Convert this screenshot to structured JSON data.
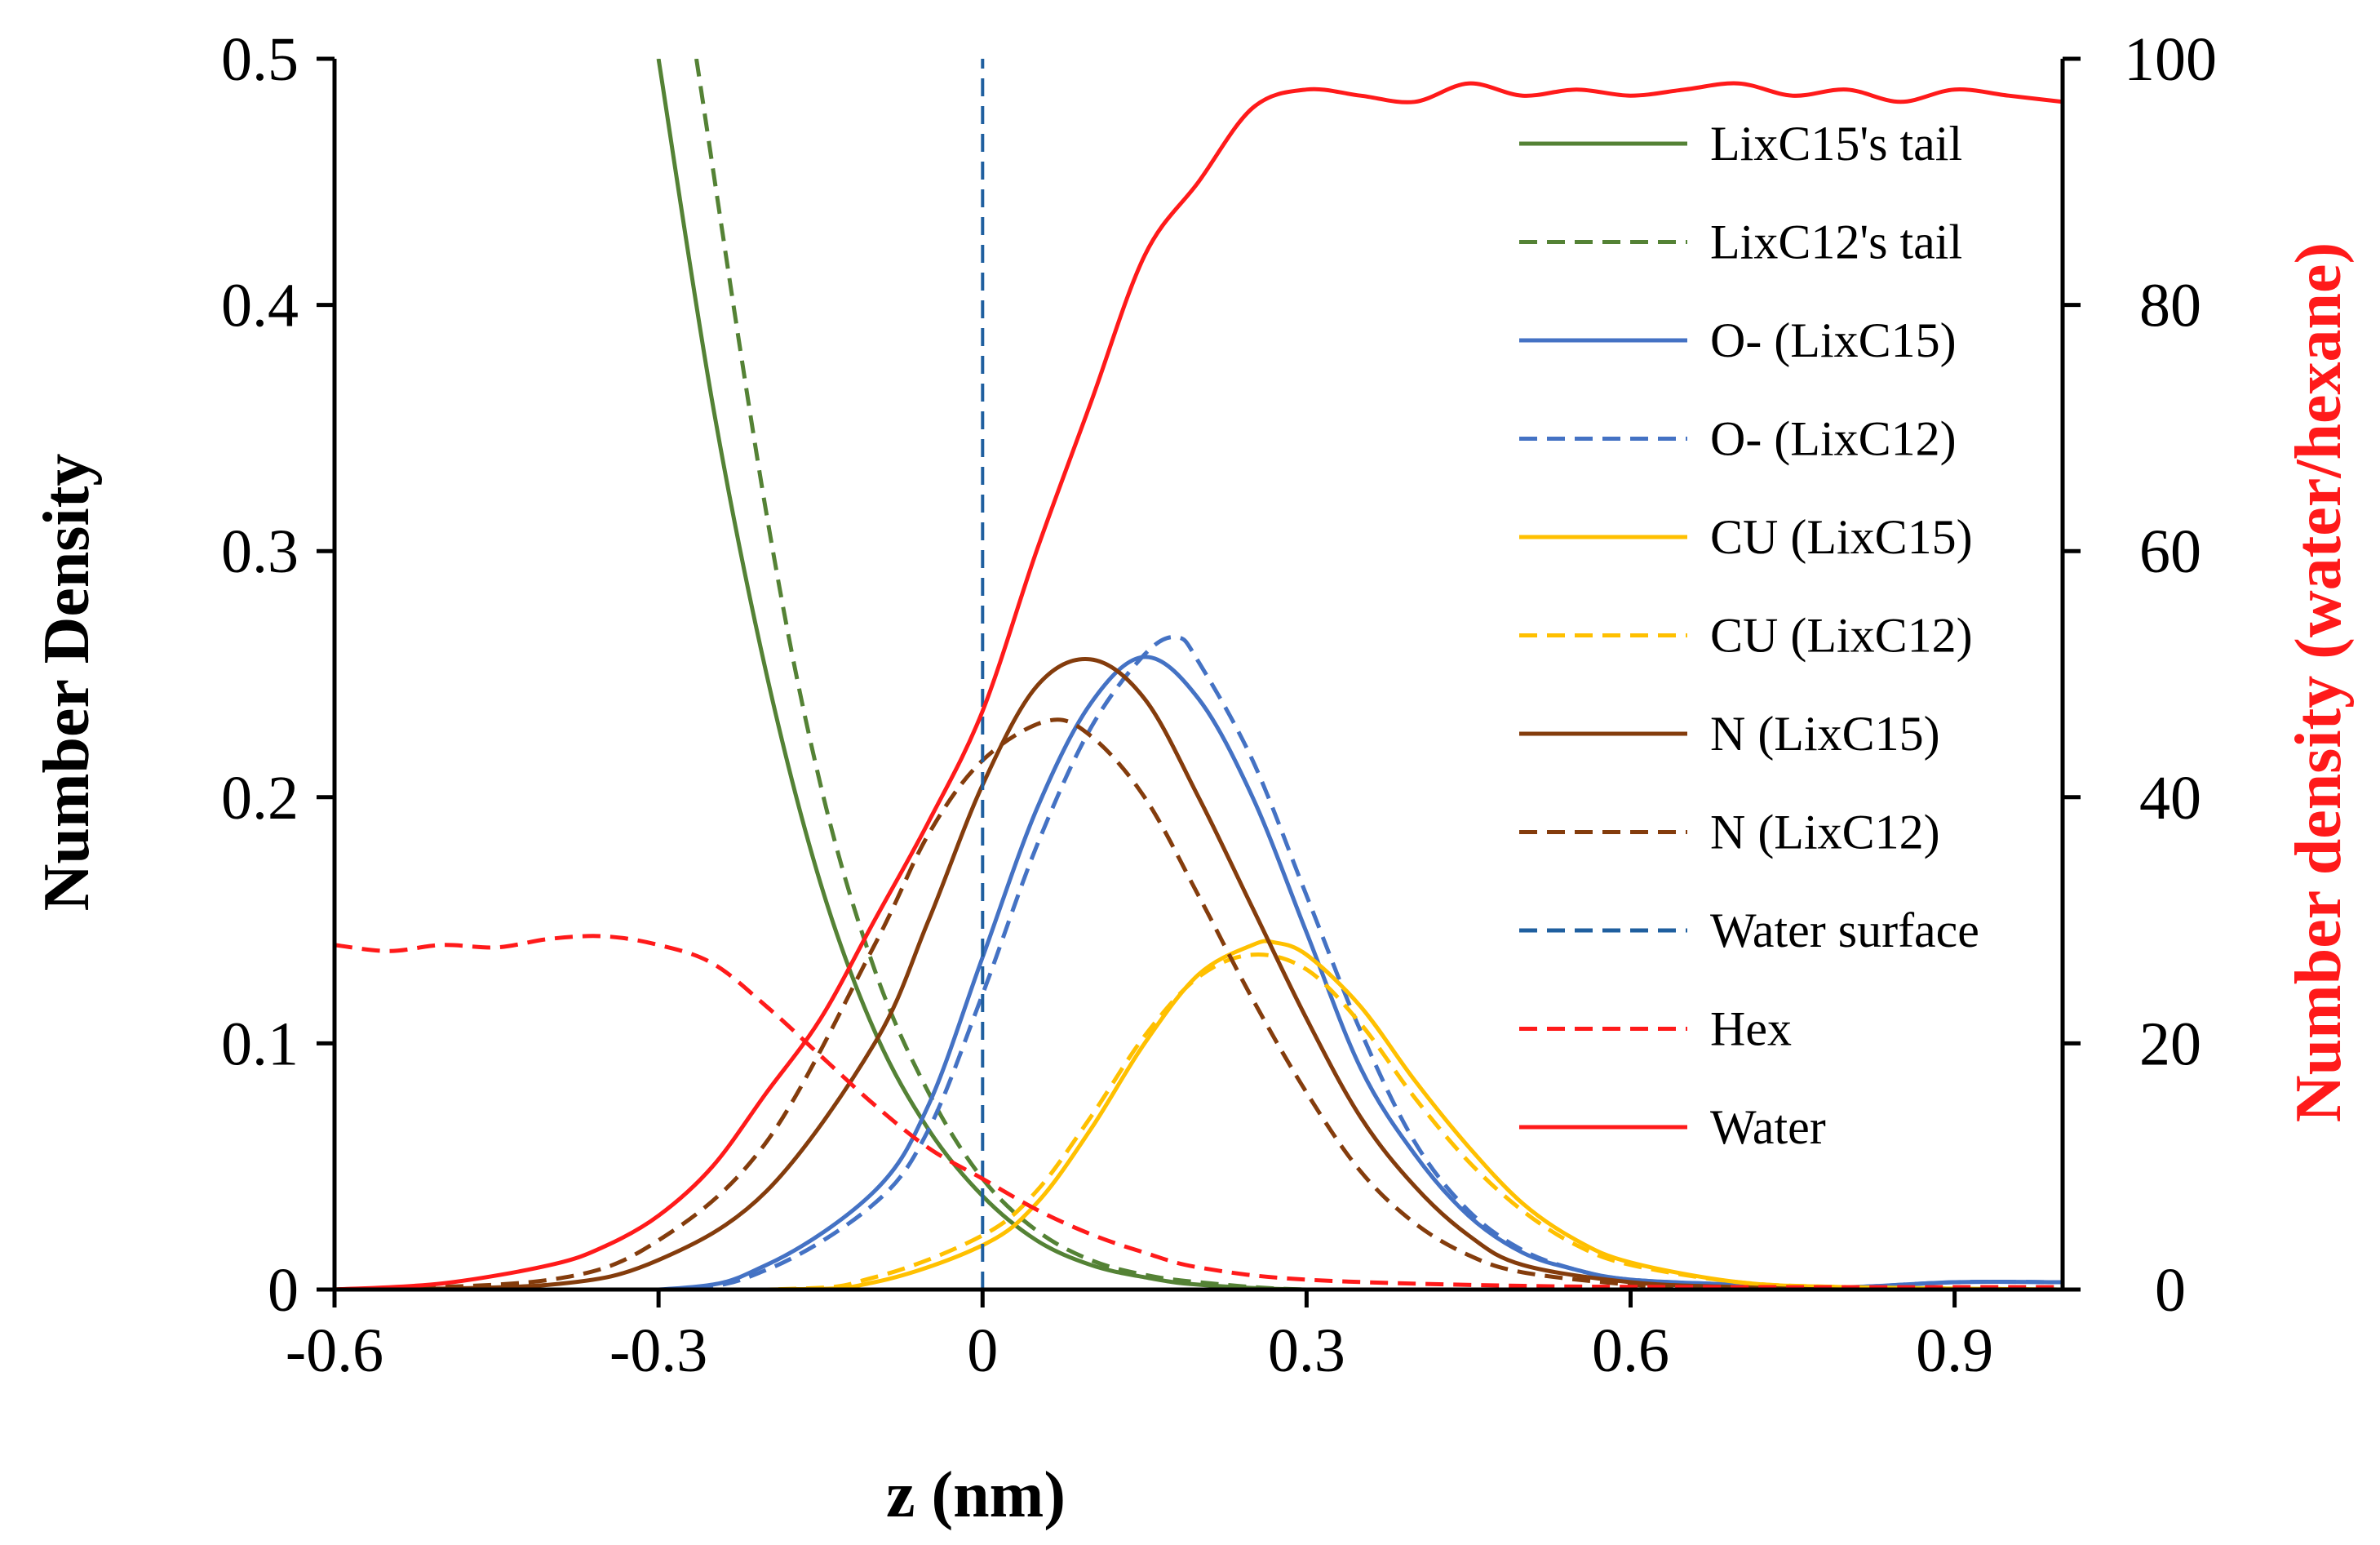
{
  "chart_data": {
    "type": "line",
    "title": "",
    "xlabel": "z (nm)",
    "ylabel": "Number Density",
    "y2label": "Number density (water/hexane)",
    "xlim": [
      -0.6,
      1.0
    ],
    "ylim": [
      0,
      0.5
    ],
    "y2lim": [
      0,
      100
    ],
    "x_ticks": [
      "-0.6",
      "-0.3",
      "0",
      "0.3",
      "0.6",
      "0.9"
    ],
    "x_tick_values": [
      -0.6,
      -0.3,
      0,
      0.3,
      0.6,
      0.9
    ],
    "y_ticks": [
      "0",
      "0.1",
      "0.2",
      "0.3",
      "0.4",
      "0.5"
    ],
    "y_tick_values": [
      0,
      0.1,
      0.2,
      0.3,
      0.4,
      0.5
    ],
    "y2_ticks": [
      "0",
      "20",
      "40",
      "60",
      "80",
      "100"
    ],
    "y2_tick_values": [
      0,
      20,
      40,
      60,
      80,
      100
    ],
    "grid": false,
    "legend_position": "right",
    "series": [
      {
        "name": "LixC15's tail",
        "color": "#548235",
        "dash": "solid",
        "axis": "left",
        "x": [
          -0.3,
          -0.25,
          -0.2,
          -0.15,
          -0.1,
          -0.05,
          0,
          0.05,
          0.1,
          0.15,
          0.2,
          0.3,
          0.5,
          1.0
        ],
        "y": [
          0.5,
          0.36,
          0.25,
          0.165,
          0.105,
          0.065,
          0.038,
          0.02,
          0.01,
          0.005,
          0.002,
          0.0,
          0.0,
          0.0
        ]
      },
      {
        "name": "LixC12's tail",
        "color": "#548235",
        "dash": "dashed",
        "axis": "left",
        "x": [
          -0.265,
          -0.2,
          -0.15,
          -0.1,
          -0.05,
          0,
          0.05,
          0.1,
          0.15,
          0.2,
          0.3,
          0.5,
          1.0
        ],
        "y": [
          0.5,
          0.315,
          0.205,
          0.13,
          0.08,
          0.045,
          0.024,
          0.012,
          0.006,
          0.003,
          0.0,
          0.0,
          0.0
        ]
      },
      {
        "name": "O- (LixC15)",
        "color": "#4472C4",
        "dash": "solid",
        "axis": "left",
        "x": [
          -0.6,
          -0.3,
          -0.2,
          -0.1,
          -0.05,
          0,
          0.05,
          0.1,
          0.15,
          0.2,
          0.25,
          0.3,
          0.35,
          0.4,
          0.45,
          0.5,
          0.55,
          0.6,
          0.7,
          0.8,
          0.9,
          1.0
        ],
        "y": [
          0.0,
          0.0,
          0.01,
          0.04,
          0.075,
          0.135,
          0.195,
          0.238,
          0.257,
          0.24,
          0.2,
          0.145,
          0.09,
          0.055,
          0.03,
          0.015,
          0.008,
          0.004,
          0.002,
          0.001,
          0.003,
          0.003
        ]
      },
      {
        "name": "O- (LixC12)",
        "color": "#4472C4",
        "dash": "dashed",
        "axis": "left",
        "x": [
          -0.6,
          -0.3,
          -0.2,
          -0.1,
          -0.05,
          0,
          0.05,
          0.1,
          0.15,
          0.18,
          0.2,
          0.25,
          0.3,
          0.35,
          0.4,
          0.45,
          0.5,
          0.55,
          0.6,
          0.7,
          0.8,
          0.9,
          1.0
        ],
        "y": [
          0.0,
          0.0,
          0.008,
          0.035,
          0.065,
          0.12,
          0.18,
          0.228,
          0.258,
          0.265,
          0.255,
          0.215,
          0.16,
          0.105,
          0.06,
          0.032,
          0.016,
          0.008,
          0.004,
          0.002,
          0.001,
          0.003,
          0.003
        ]
      },
      {
        "name": "CU (LixC15)",
        "color": "#FFC000",
        "dash": "solid",
        "axis": "left",
        "x": [
          -0.6,
          -0.2,
          -0.1,
          0,
          0.05,
          0.1,
          0.15,
          0.2,
          0.25,
          0.27,
          0.3,
          0.35,
          0.4,
          0.45,
          0.5,
          0.55,
          0.6,
          0.7,
          0.8,
          1.0
        ],
        "y": [
          0.0,
          0.0,
          0.003,
          0.018,
          0.035,
          0.065,
          0.1,
          0.128,
          0.14,
          0.141,
          0.136,
          0.115,
          0.085,
          0.058,
          0.035,
          0.02,
          0.011,
          0.003,
          0.001,
          0.0
        ]
      },
      {
        "name": "CU (LixC12)",
        "color": "#FFC000",
        "dash": "dashed",
        "axis": "left",
        "x": [
          -0.6,
          -0.2,
          -0.1,
          0,
          0.05,
          0.1,
          0.15,
          0.2,
          0.25,
          0.3,
          0.35,
          0.4,
          0.45,
          0.5,
          0.55,
          0.6,
          0.7,
          0.8,
          1.0
        ],
        "y": [
          0.0,
          0.0,
          0.005,
          0.022,
          0.04,
          0.07,
          0.103,
          0.127,
          0.136,
          0.13,
          0.108,
          0.078,
          0.052,
          0.032,
          0.018,
          0.01,
          0.003,
          0.001,
          0.0
        ]
      },
      {
        "name": "N (LixC15)",
        "color": "#843C0C",
        "dash": "solid",
        "axis": "left",
        "x": [
          -0.6,
          -0.4,
          -0.3,
          -0.2,
          -0.1,
          -0.05,
          0,
          0.05,
          0.1,
          0.15,
          0.2,
          0.25,
          0.3,
          0.35,
          0.4,
          0.45,
          0.5,
          0.6,
          0.7,
          0.8,
          1.0
        ],
        "y": [
          0.0,
          0.002,
          0.012,
          0.04,
          0.1,
          0.15,
          0.205,
          0.245,
          0.256,
          0.24,
          0.2,
          0.155,
          0.11,
          0.07,
          0.042,
          0.022,
          0.01,
          0.003,
          0.001,
          0.0,
          0.0
        ]
      },
      {
        "name": "N (LixC12)",
        "color": "#843C0C",
        "dash": "dashed",
        "axis": "left",
        "x": [
          -0.6,
          -0.4,
          -0.3,
          -0.2,
          -0.1,
          -0.05,
          0,
          0.06,
          0.1,
          0.15,
          0.2,
          0.25,
          0.3,
          0.35,
          0.4,
          0.45,
          0.5,
          0.6,
          0.7,
          0.8,
          1.0
        ],
        "y": [
          0.0,
          0.004,
          0.02,
          0.06,
          0.14,
          0.185,
          0.215,
          0.231,
          0.225,
          0.2,
          0.16,
          0.118,
          0.08,
          0.048,
          0.027,
          0.014,
          0.007,
          0.002,
          0.0,
          0.0,
          0.0
        ]
      },
      {
        "name": "Water surface",
        "color": "#1F5F9F",
        "dash": "dashed",
        "axis": "left",
        "x": [
          0,
          0
        ],
        "y": [
          0,
          0.5
        ]
      },
      {
        "name": "Hex",
        "color": "#FF1A1A",
        "dash": "dashed",
        "axis": "right",
        "x": [
          -0.6,
          -0.55,
          -0.5,
          -0.45,
          -0.4,
          -0.35,
          -0.3,
          -0.25,
          -0.2,
          -0.15,
          -0.1,
          -0.05,
          0,
          0.05,
          0.1,
          0.15,
          0.2,
          0.3,
          0.5,
          0.7,
          1.0
        ],
        "y": [
          28,
          27.5,
          28,
          27.8,
          28.5,
          28.7,
          28,
          26.5,
          23,
          19,
          15,
          11.5,
          9,
          6.5,
          4.5,
          3,
          1.8,
          0.8,
          0.3,
          0.2,
          0.2
        ]
      },
      {
        "name": "Water",
        "color": "#FF1A1A",
        "dash": "solid",
        "axis": "right",
        "x": [
          -0.6,
          -0.5,
          -0.4,
          -0.35,
          -0.3,
          -0.25,
          -0.2,
          -0.15,
          -0.1,
          -0.05,
          0,
          0.05,
          0.1,
          0.15,
          0.2,
          0.25,
          0.3,
          0.35,
          0.4,
          0.45,
          0.5,
          0.55,
          0.6,
          0.65,
          0.7,
          0.75,
          0.8,
          0.85,
          0.9,
          0.95,
          1.0
        ],
        "y": [
          0,
          0.5,
          2,
          3.5,
          6,
          10,
          16,
          22,
          30,
          38,
          47,
          60,
          72,
          84,
          90,
          96,
          97.5,
          97,
          96.5,
          98,
          97,
          97.5,
          97,
          97.5,
          98,
          97,
          97.5,
          96.5,
          97.5,
          97,
          96.5
        ]
      }
    ]
  }
}
